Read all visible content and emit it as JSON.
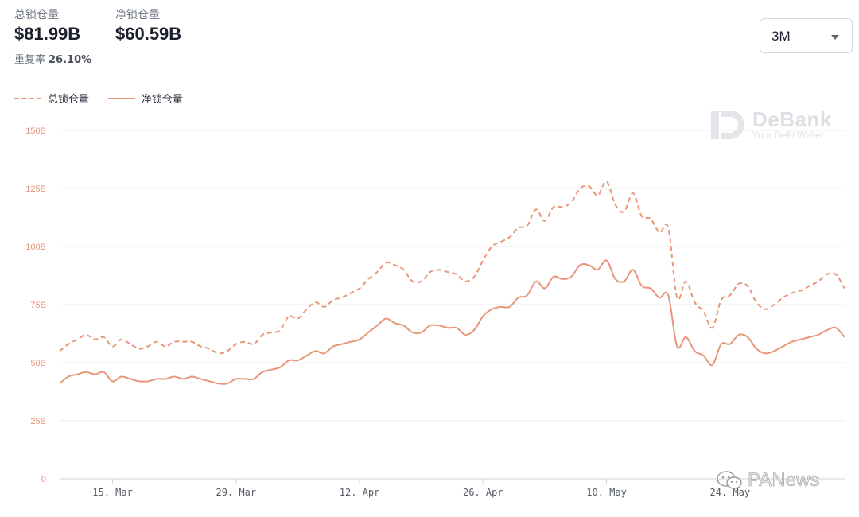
{
  "stats": {
    "total_label": "总锁仓量",
    "total_value": "$81.99B",
    "net_label": "净锁仓量",
    "net_value": "$60.59B",
    "overlap_label": "重复率",
    "overlap_value": "26.10%"
  },
  "range_select": {
    "value": "3M"
  },
  "watermark": {
    "brand": "DeBank",
    "tagline": "Your DeFi Wallet",
    "source": "PANews"
  },
  "colors": {
    "series": "#e8967a",
    "grid": "#ebebeb",
    "tick_text": "#e8967a"
  },
  "chart_data": {
    "type": "line",
    "title": "",
    "xlabel": "",
    "ylabel": "",
    "ylim": [
      0,
      150
    ],
    "y_ticks": [
      0,
      25,
      50,
      75,
      100,
      125,
      150
    ],
    "y_tick_labels": [
      "0",
      "25B",
      "50B",
      "75B",
      "100B",
      "125B",
      "150B"
    ],
    "y_unit": "B",
    "x_domain": [
      "2021-03-09",
      "2021-05-29"
    ],
    "x_ticks": [
      "2021-03-15",
      "2021-03-29",
      "2021-04-12",
      "2021-04-26",
      "2021-05-10",
      "2021-05-24"
    ],
    "x_tick_labels": [
      "15. Mar",
      "29. Mar",
      "12. Apr",
      "26. Apr",
      "10. May",
      "24. May"
    ],
    "grid": true,
    "legend": "top-left",
    "dates": [
      "2021-03-09",
      "2021-03-10",
      "2021-03-11",
      "2021-03-12",
      "2021-03-13",
      "2021-03-14",
      "2021-03-15",
      "2021-03-16",
      "2021-03-17",
      "2021-03-18",
      "2021-03-19",
      "2021-03-20",
      "2021-03-21",
      "2021-03-22",
      "2021-03-23",
      "2021-03-24",
      "2021-03-25",
      "2021-03-26",
      "2021-03-27",
      "2021-03-28",
      "2021-03-29",
      "2021-03-30",
      "2021-03-31",
      "2021-04-01",
      "2021-04-02",
      "2021-04-03",
      "2021-04-04",
      "2021-04-05",
      "2021-04-06",
      "2021-04-07",
      "2021-04-08",
      "2021-04-09",
      "2021-04-10",
      "2021-04-11",
      "2021-04-12",
      "2021-04-13",
      "2021-04-14",
      "2021-04-15",
      "2021-04-16",
      "2021-04-17",
      "2021-04-18",
      "2021-04-19",
      "2021-04-20",
      "2021-04-21",
      "2021-04-22",
      "2021-04-23",
      "2021-04-24",
      "2021-04-25",
      "2021-04-26",
      "2021-04-27",
      "2021-04-28",
      "2021-04-29",
      "2021-04-30",
      "2021-05-01",
      "2021-05-02",
      "2021-05-03",
      "2021-05-04",
      "2021-05-05",
      "2021-05-06",
      "2021-05-07",
      "2021-05-08",
      "2021-05-09",
      "2021-05-10",
      "2021-05-11",
      "2021-05-12",
      "2021-05-13",
      "2021-05-14",
      "2021-05-15",
      "2021-05-16",
      "2021-05-17",
      "2021-05-18",
      "2021-05-19",
      "2021-05-20",
      "2021-05-21",
      "2021-05-22",
      "2021-05-23",
      "2021-05-24",
      "2021-05-25",
      "2021-05-26",
      "2021-05-27",
      "2021-05-28",
      "2021-05-29"
    ],
    "series": [
      {
        "name": "总锁仓量",
        "style": "dashed",
        "values": [
          55,
          58,
          60,
          62,
          60,
          61,
          57,
          60,
          58,
          56,
          57,
          59,
          57,
          59,
          59,
          59,
          57,
          56,
          54,
          55,
          58,
          59,
          58,
          62,
          63,
          64,
          70,
          69,
          73,
          76,
          74,
          77,
          78,
          80,
          82,
          86,
          89,
          93,
          92,
          90,
          85,
          85,
          89,
          90,
          89,
          88,
          85,
          87,
          94,
          100,
          102,
          104,
          108,
          109,
          116,
          111,
          117,
          117,
          119,
          125,
          126,
          122,
          128,
          118,
          115,
          123,
          113,
          112,
          106,
          108,
          78,
          85,
          76,
          72,
          65,
          77,
          79,
          84,
          83,
          76,
          73,
          75
        ]
      },
      {
        "name": "净锁仓量",
        "style": "solid",
        "values": [
          41,
          44,
          45,
          46,
          45,
          46,
          42,
          44,
          43,
          42,
          42,
          43,
          43,
          44,
          43,
          44,
          43,
          42,
          41,
          41,
          43,
          43,
          43,
          46,
          47,
          48,
          51,
          51,
          53,
          55,
          54,
          57,
          58,
          59,
          60,
          63,
          66,
          69,
          67,
          66,
          63,
          63,
          66,
          66,
          65,
          65,
          62,
          64,
          70,
          73,
          74,
          74,
          78,
          79,
          85,
          82,
          87,
          86,
          87,
          92,
          92,
          90,
          94,
          86,
          85,
          90,
          83,
          82,
          78,
          79,
          57,
          61,
          55,
          53,
          49,
          58,
          58,
          62,
          61,
          56,
          54,
          55
        ]
      }
    ],
    "series_tail_extension": {
      "note_free": true,
      "dates": [
        "2021-05-29",
        "2021-05-30",
        "2021-05-31",
        "2021-06-01",
        "2021-06-02",
        "2021-06-03",
        "2021-06-04",
        "2021-06-05",
        "2021-06-06"
      ],
      "total": [
        75,
        78,
        80,
        81,
        83,
        85,
        88,
        88,
        82
      ],
      "net": [
        55,
        57,
        59,
        60,
        61,
        62,
        64,
        65,
        61
      ]
    }
  }
}
